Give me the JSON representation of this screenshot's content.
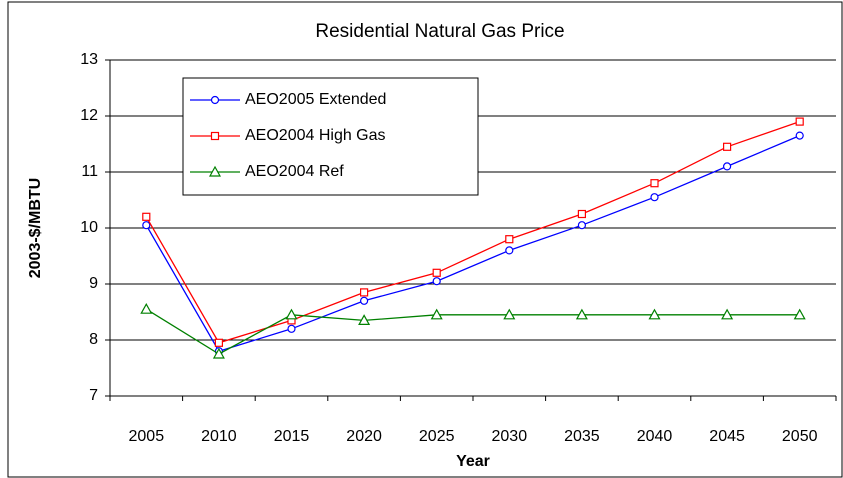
{
  "chart_data": {
    "type": "line",
    "title": "Residential Natural Gas Price",
    "x_label": "Year",
    "y_label": "2003-$/MBTU",
    "categories": [
      "2005",
      "2010",
      "2015",
      "2020",
      "2025",
      "2030",
      "2035",
      "2040",
      "2045",
      "2050"
    ],
    "series": [
      {
        "name": "AEO2005 Extended",
        "color": "#0000ff",
        "marker": "circle",
        "values": [
          10.05,
          7.8,
          8.2,
          8.7,
          9.05,
          9.6,
          10.05,
          10.55,
          11.1,
          11.65
        ]
      },
      {
        "name": "AEO2004 High Gas",
        "color": "#ff0000",
        "marker": "square",
        "values": [
          10.2,
          7.95,
          8.35,
          8.85,
          9.2,
          9.8,
          10.25,
          10.8,
          11.45,
          11.9
        ]
      },
      {
        "name": "AEO2004 Ref",
        "color": "#008000",
        "marker": "triangle",
        "values": [
          8.55,
          7.75,
          8.45,
          8.35,
          8.45,
          8.45,
          8.45,
          8.45,
          8.45,
          8.45
        ]
      }
    ],
    "ylim": [
      7,
      13
    ],
    "yticks": [
      7,
      8,
      9,
      10,
      11,
      12,
      13
    ],
    "grid": true,
    "legend": "upper left"
  }
}
